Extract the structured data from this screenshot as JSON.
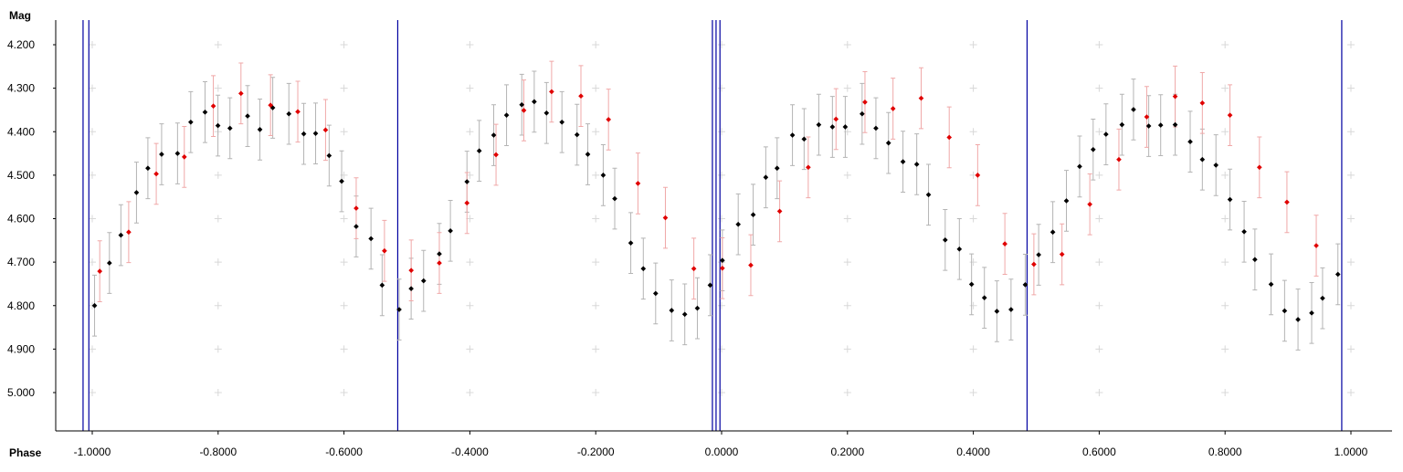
{
  "chart_data": {
    "type": "scatter",
    "title": "",
    "xlabel": "Phase",
    "ylabel": "Mag",
    "xlim": [
      -1.1,
      1.05
    ],
    "ylim": [
      5.085,
      4.145
    ],
    "y_inverted": true,
    "xticks": [
      "-1.0000",
      "-0.8000",
      "-0.6000",
      "-0.4000",
      "-0.2000",
      "0.0000",
      "0.2000",
      "0.4000",
      "0.6000",
      "0.8000",
      "1.0000"
    ],
    "xtick_values": [
      -1.0,
      -0.8,
      -0.6,
      -0.4,
      -0.2,
      0.0,
      0.2,
      0.4,
      0.6,
      0.8,
      1.0
    ],
    "yticks": [
      "4.200",
      "4.300",
      "4.400",
      "4.500",
      "4.600",
      "4.700",
      "4.800",
      "4.900",
      "5.000"
    ],
    "ytick_values": [
      4.2,
      4.3,
      4.4,
      4.5,
      4.6,
      4.7,
      4.8,
      4.9,
      5.0
    ],
    "grid": "plus-markers",
    "error_bars": true,
    "series": [
      {
        "color": "#000000",
        "error_color": "#b4b4b4",
        "error": 0.07,
        "x": [
          -0.9963,
          -0.9727,
          -0.9545,
          -0.9297,
          -0.9116,
          -0.8898,
          -0.8645,
          -0.8435,
          -0.8208,
          -0.8003,
          -0.7812,
          -0.7532,
          -0.7336,
          -0.7132,
          -0.6876,
          -0.6639,
          -0.6451,
          -0.6236,
          -0.6037,
          -0.5806,
          -0.5571,
          -0.5394,
          -0.5123,
          -0.4933,
          -0.4735,
          -0.4485,
          -0.4309,
          -0.4046,
          -0.3851,
          -0.3621,
          -0.3417,
          -0.3175,
          -0.2977,
          -0.2782,
          -0.2537,
          -0.2297,
          -0.2126,
          -0.1881,
          -0.1698,
          -0.1443,
          -0.1244,
          -0.1048,
          -0.0794,
          -0.0585,
          -0.0385,
          -0.0182,
          0.0012,
          0.0264,
          0.0502,
          0.0702,
          0.0882,
          0.1126,
          0.1311,
          0.1544,
          0.1761,
          0.1965,
          0.2233,
          0.2452,
          0.2652,
          0.2882,
          0.3101,
          0.3288,
          0.3553,
          0.3778,
          0.3972,
          0.4176,
          0.4374,
          0.4599,
          0.4825,
          0.5038,
          0.5263,
          0.5479,
          0.5689,
          0.5904,
          0.6108,
          0.6362,
          0.6545,
          0.6787,
          0.6977,
          0.7207,
          0.7446,
          0.7639,
          0.7855,
          0.8078,
          0.8303,
          0.8474,
          0.8731,
          0.8946,
          0.9159,
          0.9376,
          0.9549,
          0.9793
        ],
        "y": [
          4.8,
          4.702,
          4.638,
          4.54,
          4.484,
          4.452,
          4.45,
          4.378,
          4.355,
          4.386,
          4.392,
          4.364,
          4.395,
          4.345,
          4.359,
          4.405,
          4.404,
          4.455,
          4.514,
          4.618,
          4.646,
          4.753,
          4.809,
          4.761,
          4.743,
          4.681,
          4.628,
          4.515,
          4.444,
          4.408,
          4.362,
          4.338,
          4.331,
          4.357,
          4.378,
          4.407,
          4.452,
          4.5,
          4.554,
          4.656,
          4.715,
          4.772,
          4.811,
          4.82,
          4.806,
          4.753,
          4.696,
          4.613,
          4.591,
          4.505,
          4.484,
          4.408,
          4.417,
          4.384,
          4.389,
          4.389,
          4.359,
          4.392,
          4.426,
          4.469,
          4.475,
          4.545,
          4.649,
          4.67,
          4.751,
          4.782,
          4.813,
          4.809,
          4.752,
          4.683,
          4.631,
          4.559,
          4.48,
          4.441,
          4.406,
          4.384,
          4.349,
          4.387,
          4.385,
          4.384,
          4.423,
          4.464,
          4.477,
          4.556,
          4.63,
          4.694,
          4.751,
          4.812,
          4.832,
          4.817,
          4.783,
          4.728
        ]
      },
      {
        "color": "#e00000",
        "error_color": "#f0a8a8",
        "error": 0.07,
        "x": [
          -0.9881,
          -0.9421,
          -0.8983,
          -0.8537,
          -0.8076,
          -0.7637,
          -0.7167,
          -0.6734,
          -0.6293,
          -0.5806,
          -0.5357,
          -0.4932,
          -0.4485,
          -0.4046,
          -0.3584,
          -0.3142,
          -0.2701,
          -0.2235,
          -0.1797,
          -0.1329,
          -0.0893,
          -0.0441,
          0.0012,
          0.0464,
          0.0923,
          0.1377,
          0.1818,
          0.2278,
          0.2724,
          0.3171,
          0.3617,
          0.4069,
          0.4501,
          0.4962,
          0.5409,
          0.5851,
          0.6313,
          0.6755,
          0.7207,
          0.7639,
          0.8078,
          0.8546,
          0.8983,
          0.9449
        ],
        "y": [
          4.721,
          4.631,
          4.497,
          4.458,
          4.341,
          4.312,
          4.339,
          4.354,
          4.396,
          4.576,
          4.674,
          4.719,
          4.702,
          4.564,
          4.453,
          4.351,
          4.308,
          4.318,
          4.372,
          4.519,
          4.598,
          4.715,
          4.714,
          4.707,
          4.583,
          4.482,
          4.371,
          4.332,
          4.347,
          4.323,
          4.413,
          4.5,
          4.658,
          4.705,
          4.682,
          4.567,
          4.464,
          4.366,
          4.319,
          4.334,
          4.362,
          4.482,
          4.562,
          4.662
        ]
      }
    ],
    "vertical_lines": [
      -1.0146,
      -1.0054,
      -0.5146,
      -0.0146,
      -0.0088,
      -0.0026,
      0.4854,
      0.9854
    ],
    "vertical_line_color": "#0000a0"
  }
}
